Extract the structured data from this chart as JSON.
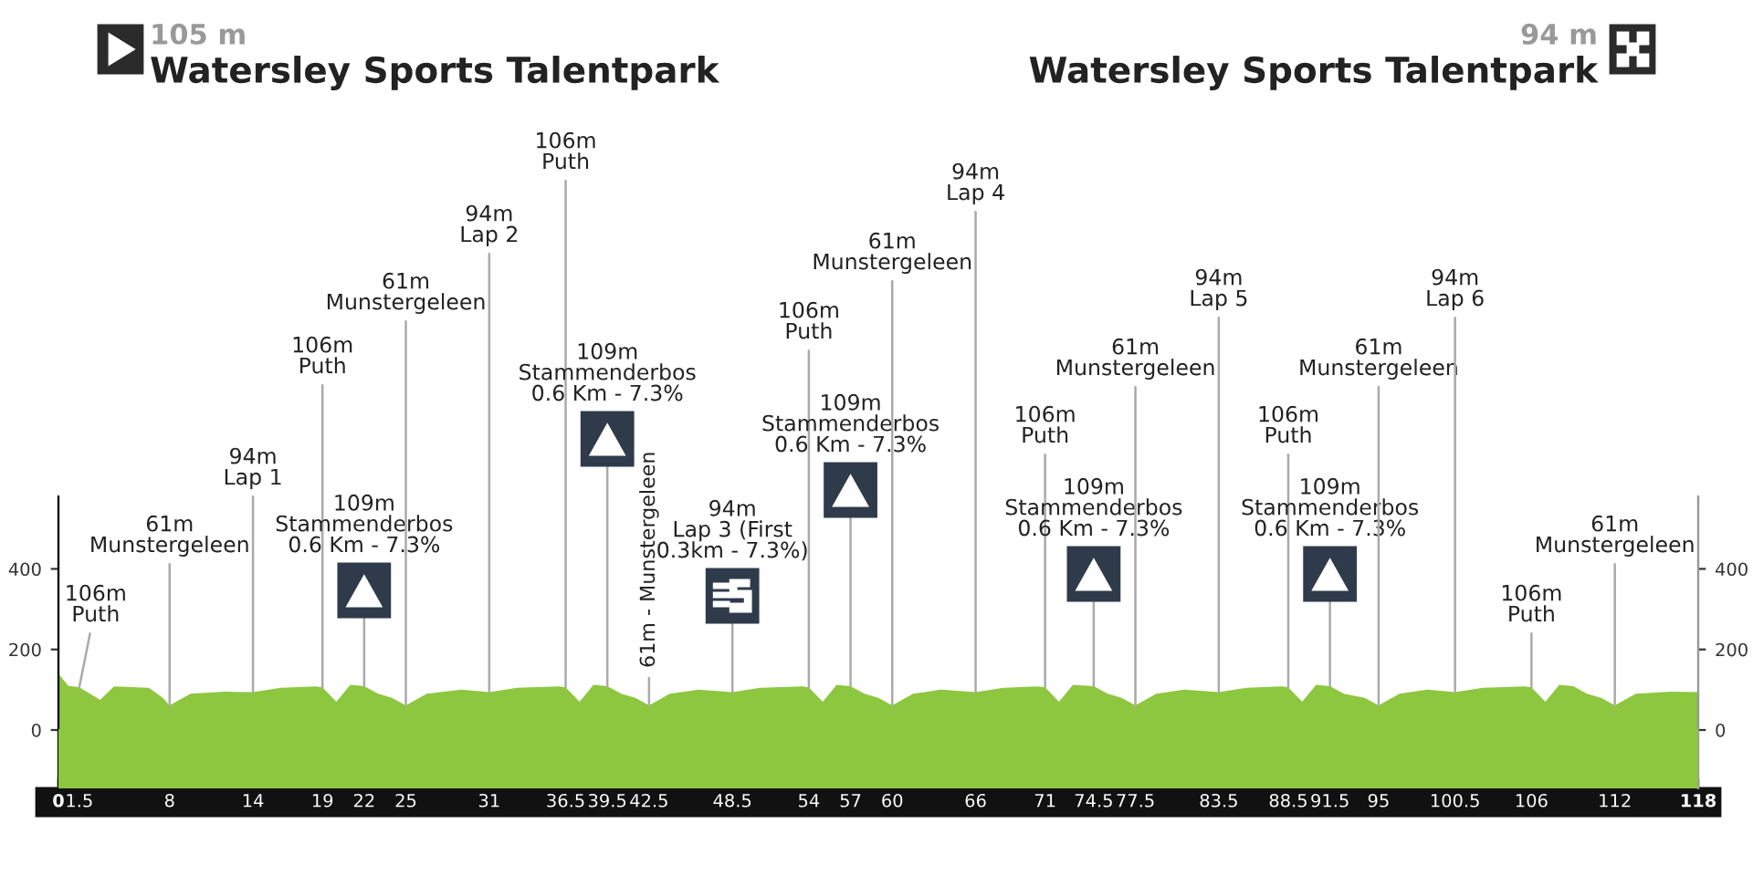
{
  "chart_data": {
    "type": "area",
    "title": "Watersley Sports Talentpark",
    "subtitle": "105 m",
    "x": [
      0,
      0.7,
      1.5,
      3,
      4,
      6.5,
      7.5,
      8,
      9.5,
      12,
      14,
      16,
      18.5,
      19,
      20,
      21,
      22,
      23,
      24,
      25,
      26.5,
      29,
      31,
      33,
      36,
      36.5,
      37.5,
      38.5,
      39.5,
      40.5,
      41.5,
      42.5,
      44,
      46,
      48.5,
      50.5,
      53.5,
      54,
      55,
      56,
      57,
      58,
      59,
      60,
      61.5,
      63.5,
      66,
      68,
      70.5,
      71,
      72,
      73,
      74.5,
      75.5,
      76.5,
      77.5,
      79,
      81,
      83.5,
      85.5,
      88,
      88.5,
      89.5,
      90.5,
      91.5,
      92.5,
      94,
      95,
      96.5,
      98.5,
      100.5,
      102.5,
      105.5,
      106,
      107,
      108,
      109,
      110,
      111,
      112,
      113.5,
      116,
      118
    ],
    "series": [
      {
        "color": "#8dc63f",
        "values": [
          140,
          110,
          106,
          75,
          108,
          105,
          80,
          61,
          90,
          95,
          94,
          105,
          108,
          106,
          70,
          112,
          109,
          90,
          80,
          61,
          90,
          100,
          94,
          105,
          108,
          106,
          70,
          112,
          109,
          90,
          80,
          61,
          90,
          100,
          94,
          105,
          108,
          106,
          70,
          112,
          109,
          90,
          80,
          61,
          90,
          100,
          94,
          105,
          108,
          106,
          70,
          112,
          109,
          90,
          80,
          61,
          90,
          100,
          94,
          105,
          108,
          106,
          70,
          112,
          109,
          90,
          80,
          61,
          90,
          100,
          94,
          105,
          108,
          106,
          70,
          112,
          109,
          90,
          80,
          61,
          90,
          95,
          94
        ]
      }
    ],
    "xlim": [
      0,
      118
    ],
    "ylim": [
      -145,
      580
    ],
    "yticks": [
      0,
      200,
      400
    ],
    "y2lim": [
      -145,
      580
    ],
    "y2ticks": [
      0,
      200,
      400
    ],
    "xticks": [
      0,
      1.5,
      8,
      14,
      19,
      22,
      25,
      31,
      36.5,
      39.5,
      42.5,
      48.5,
      54,
      57,
      60,
      66,
      71,
      74.5,
      77.5,
      83.5,
      88.5,
      91.5,
      95,
      100.5,
      106,
      112,
      118
    ],
    "annotations": [
      "94 m",
      "Watersley Sports Talentpark",
      {
        "text": "106m\nPuth",
        "x": 1.5,
        "y": 106
      },
      {
        "text": "61m\nMunstergeleen",
        "x": 8,
        "y": 61
      },
      {
        "text": "94m\nLap 1",
        "x": 14,
        "y": 94
      },
      {
        "text": "106m\nPuth",
        "x": 19,
        "y": 106
      },
      {
        "text": "109m\nStammenderbos\n0.6 Km - 7.3%",
        "x": 22,
        "y": 109
      },
      {
        "text": "61m\nMunstergeleen",
        "x": 25,
        "y": 61
      },
      {
        "text": "94m\nLap 2",
        "x": 31,
        "y": 94
      },
      {
        "text": "106m\nPuth",
        "x": 36.5,
        "y": 106
      },
      {
        "text": "109m\nStammenderbos\n0.6 Km - 7.3%",
        "x": 39.5,
        "y": 109
      },
      {
        "text": "61m - Munstergeleen",
        "x": 42.5,
        "y": 61
      },
      {
        "text": "94m\nLap 3 (First\n0.3km - 7.3%)",
        "x": 48.5,
        "y": 94
      },
      {
        "text": "106m\nPuth",
        "x": 54,
        "y": 106
      },
      {
        "text": "109m\nStammenderbos\n0.6 Km - 7.3%",
        "x": 57,
        "y": 109
      },
      {
        "text": "61m\nMunstergeleen",
        "x": 60,
        "y": 61
      },
      {
        "text": "94m\nLap 4",
        "x": 66,
        "y": 94
      },
      {
        "text": "106m\nPuth",
        "x": 71,
        "y": 106
      },
      {
        "text": "109m\nStammenderbos\n0.6 Km - 7.3%",
        "x": 74.5,
        "y": 109
      },
      {
        "text": "61m\nMunstergeleen",
        "x": 77.5,
        "y": 61
      },
      {
        "text": "94m\nLap 5",
        "x": 83.5,
        "y": 94
      },
      {
        "text": "106m\nPuth",
        "x": 88.5,
        "y": 106
      },
      {
        "text": "109m\nStammenderbos\n0.6 Km - 7.3%",
        "x": 91.5,
        "y": 109
      },
      {
        "text": "61m\nMunstergeleen",
        "x": 95,
        "y": 61
      },
      {
        "text": "94m\nLap 6",
        "x": 100.5,
        "y": 94
      },
      {
        "text": "106m\nPuth",
        "x": 106,
        "y": 106
      },
      {
        "text": "61m\nMunstergeleen",
        "x": 112,
        "y": 61
      }
    ]
  }
}
